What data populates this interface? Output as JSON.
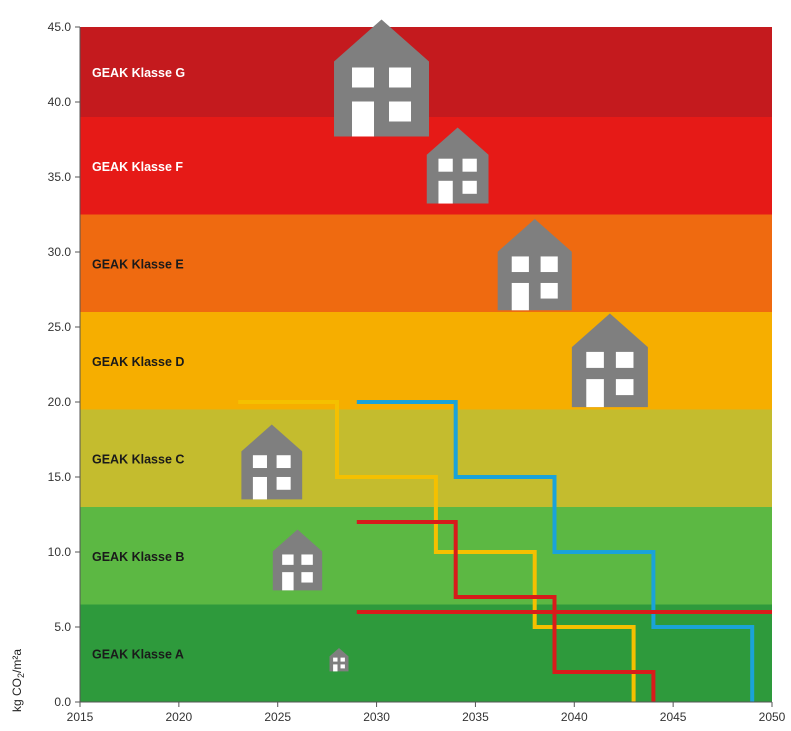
{
  "chart_data": {
    "type": "line",
    "ylabel_main": "kg CO",
    "ylabel_sub": "2",
    "ylabel_tail": "/m²a",
    "xlim": [
      2015,
      2050
    ],
    "ylim": [
      0,
      45
    ],
    "x_ticks": [
      "2015",
      "2020",
      "2025",
      "2030",
      "2035",
      "2040",
      "2045",
      "2050"
    ],
    "y_ticks": [
      "0.0",
      "5.0",
      "10.0",
      "15.0",
      "20.0",
      "25.0",
      "30.0",
      "35.0",
      "40.0",
      "45.0"
    ],
    "grid": false,
    "bands": [
      {
        "label": "GEAK Klasse A",
        "ymin": 0,
        "ymax": 6.5,
        "color": "#2e9a3c",
        "text_color": "#1a1a1a"
      },
      {
        "label": "GEAK Klasse B",
        "ymin": 6.5,
        "ymax": 13,
        "color": "#5cb843",
        "text_color": "#1a1a1a"
      },
      {
        "label": "GEAK Klasse C",
        "ymin": 13,
        "ymax": 19.5,
        "color": "#c4bc2e",
        "text_color": "#1a1a1a"
      },
      {
        "label": "GEAK Klasse D",
        "ymin": 19.5,
        "ymax": 26,
        "color": "#f6ae00",
        "text_color": "#1a1a1a"
      },
      {
        "label": "GEAK Klasse E",
        "ymin": 26,
        "ymax": 32.5,
        "color": "#ef6a10",
        "text_color": "#1a1a1a"
      },
      {
        "label": "GEAK Klasse F",
        "ymin": 32.5,
        "ymax": 39,
        "color": "#e61a17",
        "text_color": "#ffffff"
      },
      {
        "label": "GEAK Klasse G",
        "ymin": 39,
        "ymax": 45,
        "color": "#c41a1e",
        "text_color": "#ffffff"
      }
    ],
    "series": [
      {
        "color": "#f5c000",
        "x": [
          2023,
          2028,
          2028,
          2033,
          2033,
          2038,
          2038,
          2043,
          2043
        ],
        "y": [
          20,
          20,
          15,
          15,
          10,
          10,
          5,
          5,
          0
        ]
      },
      {
        "color": "#1aa3d9",
        "x": [
          2029,
          2034,
          2034,
          2039,
          2039,
          2044,
          2044,
          2049,
          2049
        ],
        "y": [
          20,
          20,
          15,
          15,
          10,
          10,
          5,
          5,
          0
        ]
      },
      {
        "color": "#d81b1b",
        "x": [
          2029,
          2034,
          2034,
          2039,
          2039,
          2044,
          2044
        ],
        "y": [
          12,
          12,
          7,
          7,
          2,
          2,
          0
        ]
      },
      {
        "color": "#d81b1b",
        "x": [
          2029,
          2050
        ],
        "y": [
          6,
          6
        ]
      }
    ],
    "house_icon": "house-icon",
    "house_color": "#7f7f7f",
    "houses": [
      {
        "x": 2030.25,
        "y": 45.5,
        "size": 1.0
      },
      {
        "x": 2034.1,
        "y": 38.3,
        "size": 0.65
      },
      {
        "x": 2038.0,
        "y": 32.2,
        "size": 0.78
      },
      {
        "x": 2041.8,
        "y": 25.9,
        "size": 0.8
      },
      {
        "x": 2024.7,
        "y": 18.5,
        "size": 0.64
      },
      {
        "x": 2026.0,
        "y": 11.5,
        "size": 0.52
      },
      {
        "x": 2028.1,
        "y": 3.6,
        "size": 0.2
      }
    ]
  }
}
